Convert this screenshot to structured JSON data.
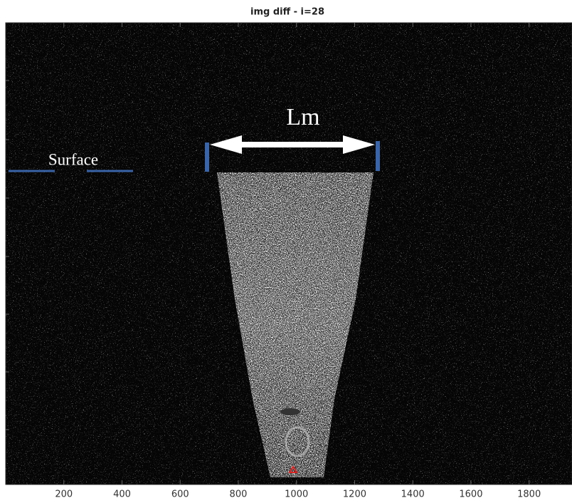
{
  "chart_data": {
    "type": "image",
    "title": "img diff - i=28",
    "annotations": [
      "Lm",
      "Surface"
    ],
    "xlim": [
      0,
      1950
    ],
    "xticks": [
      200,
      400,
      600,
      800,
      1000,
      1200,
      1400,
      1600,
      1800
    ]
  }
}
